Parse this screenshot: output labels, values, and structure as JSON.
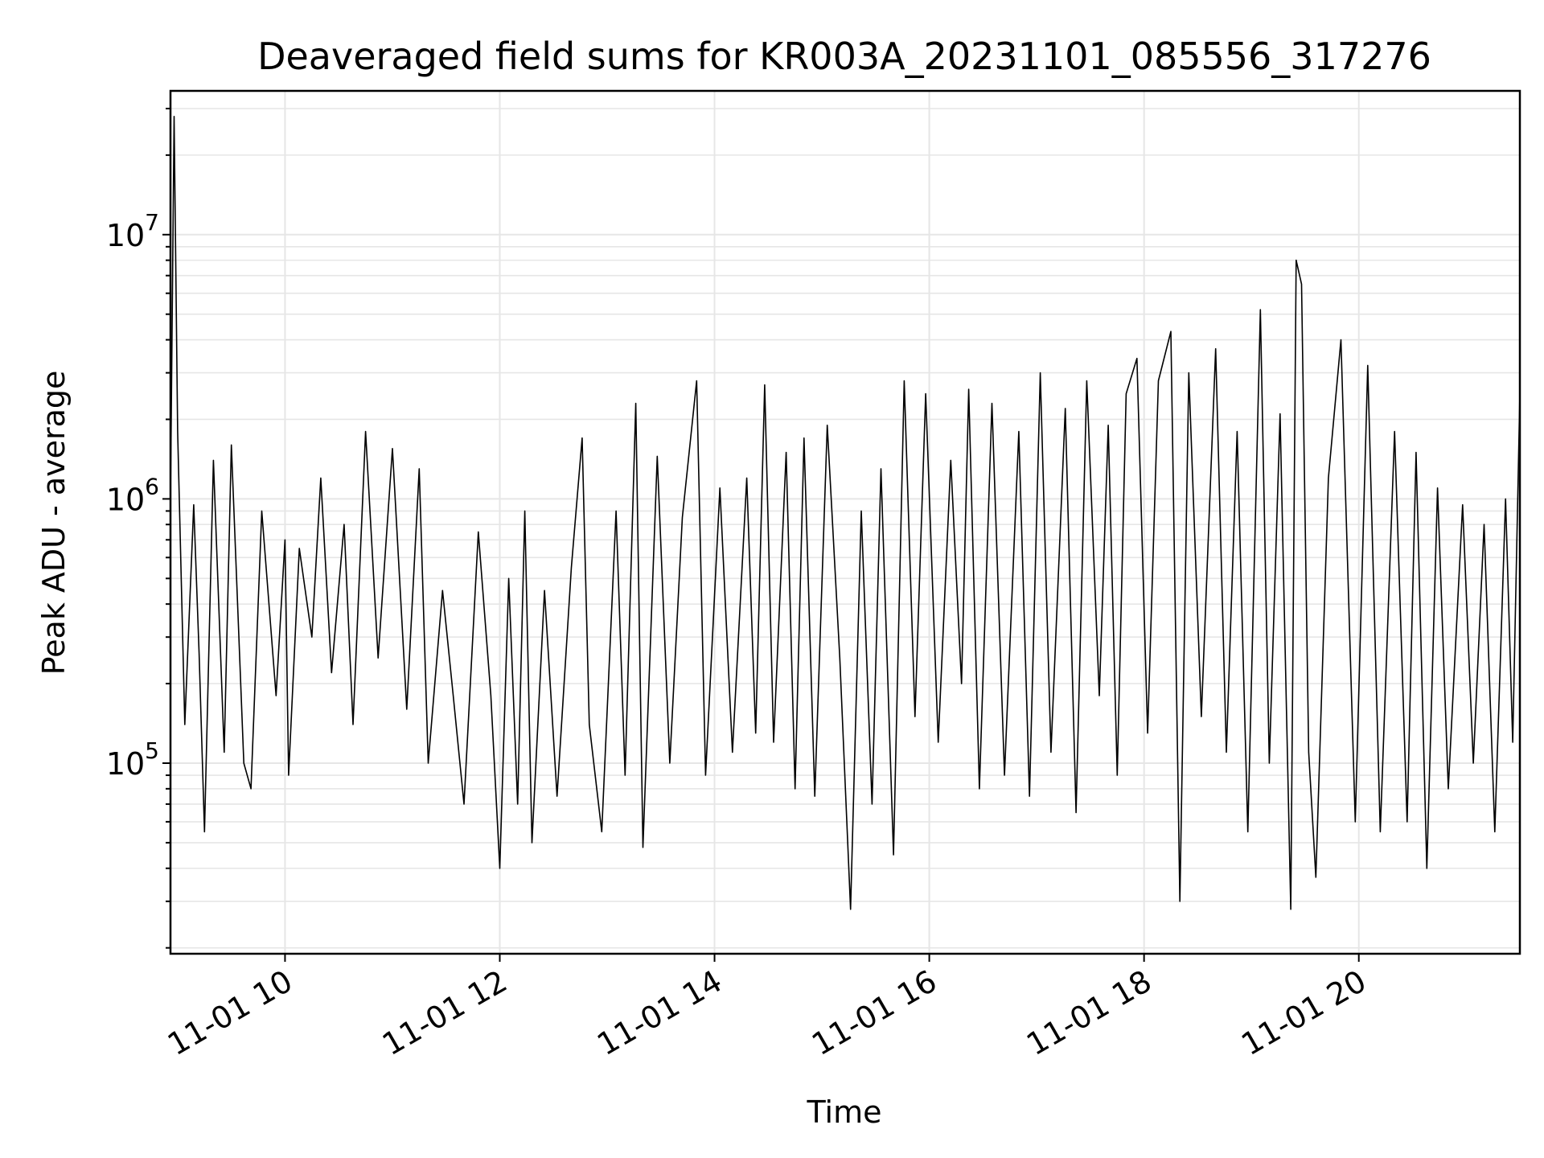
{
  "chart_data": {
    "type": "line",
    "title": "Deaveraged field sums for KR003A_20231101_085556_317276",
    "xlabel": "Time",
    "ylabel": "Peak ADU - average",
    "x_tick_labels": [
      "11-01 10",
      "11-01 12",
      "11-01 14",
      "11-01 16",
      "11-01 18",
      "11-01 20"
    ],
    "x_tick_hours": [
      10,
      12,
      14,
      16,
      18,
      20
    ],
    "y_scale": "log",
    "y_tick_labels": [
      {
        "base": "10",
        "exp": "5"
      },
      {
        "base": "10",
        "exp": "6"
      },
      {
        "base": "10",
        "exp": "7"
      }
    ],
    "y_tick_values": [
      100000,
      1000000,
      10000000
    ],
    "xlim": [
      "2023-11-01 08:56",
      "2023-11-01 21:30"
    ],
    "ylim": [
      19000,
      35000000
    ],
    "grid": true,
    "line_color": "#000000",
    "series": [
      {
        "points": [
          [
            "2023-11-01 08:56",
            1000000
          ],
          [
            "2023-11-01 08:58",
            28000000
          ],
          [
            "2023-11-01 09:00",
            1800000
          ],
          [
            "2023-11-01 09:04",
            140000
          ],
          [
            "2023-11-01 09:09",
            950000
          ],
          [
            "2023-11-01 09:12",
            260000
          ],
          [
            "2023-11-01 09:15",
            55000
          ],
          [
            "2023-11-01 09:20",
            1400000
          ],
          [
            "2023-11-01 09:26",
            110000
          ],
          [
            "2023-11-01 09:30",
            1600000
          ],
          [
            "2023-11-01 09:37",
            100000
          ],
          [
            "2023-11-01 09:41",
            80000
          ],
          [
            "2023-11-01 09:47",
            900000
          ],
          [
            "2023-11-01 09:55",
            180000
          ],
          [
            "2023-11-01 10:00",
            700000
          ],
          [
            "2023-11-01 10:02",
            90000
          ],
          [
            "2023-11-01 10:08",
            650000
          ],
          [
            "2023-11-01 10:15",
            300000
          ],
          [
            "2023-11-01 10:20",
            1200000
          ],
          [
            "2023-11-01 10:26",
            220000
          ],
          [
            "2023-11-01 10:33",
            800000
          ],
          [
            "2023-11-01 10:38",
            140000
          ],
          [
            "2023-11-01 10:45",
            1800000
          ],
          [
            "2023-11-01 10:52",
            250000
          ],
          [
            "2023-11-01 11:00",
            1550000
          ],
          [
            "2023-11-01 11:08",
            160000
          ],
          [
            "2023-11-01 11:15",
            1300000
          ],
          [
            "2023-11-01 11:20",
            100000
          ],
          [
            "2023-11-01 11:28",
            450000
          ],
          [
            "2023-11-01 11:34",
            180000
          ],
          [
            "2023-11-01 11:40",
            70000
          ],
          [
            "2023-11-01 11:48",
            750000
          ],
          [
            "2023-11-01 11:55",
            180000
          ],
          [
            "2023-11-01 12:00",
            40000
          ],
          [
            "2023-11-01 12:05",
            500000
          ],
          [
            "2023-11-01 12:10",
            70000
          ],
          [
            "2023-11-01 12:14",
            900000
          ],
          [
            "2023-11-01 12:18",
            50000
          ],
          [
            "2023-11-01 12:25",
            450000
          ],
          [
            "2023-11-01 12:32",
            75000
          ],
          [
            "2023-11-01 12:40",
            550000
          ],
          [
            "2023-11-01 12:46",
            1700000
          ],
          [
            "2023-11-01 12:50",
            140000
          ],
          [
            "2023-11-01 12:57",
            55000
          ],
          [
            "2023-11-01 13:05",
            900000
          ],
          [
            "2023-11-01 13:10",
            90000
          ],
          [
            "2023-11-01 13:16",
            2300000
          ],
          [
            "2023-11-01 13:20",
            48000
          ],
          [
            "2023-11-01 13:28",
            1450000
          ],
          [
            "2023-11-01 13:35",
            100000
          ],
          [
            "2023-11-01 13:42",
            850000
          ],
          [
            "2023-11-01 13:50",
            2800000
          ],
          [
            "2023-11-01 13:55",
            90000
          ],
          [
            "2023-11-01 14:03",
            1100000
          ],
          [
            "2023-11-01 14:10",
            110000
          ],
          [
            "2023-11-01 14:18",
            1200000
          ],
          [
            "2023-11-01 14:23",
            130000
          ],
          [
            "2023-11-01 14:28",
            2700000
          ],
          [
            "2023-11-01 14:33",
            120000
          ],
          [
            "2023-11-01 14:40",
            1500000
          ],
          [
            "2023-11-01 14:45",
            80000
          ],
          [
            "2023-11-01 14:50",
            1700000
          ],
          [
            "2023-11-01 14:56",
            75000
          ],
          [
            "2023-11-01 15:03",
            1900000
          ],
          [
            "2023-11-01 15:10",
            250000
          ],
          [
            "2023-11-01 15:16",
            28000
          ],
          [
            "2023-11-01 15:22",
            900000
          ],
          [
            "2023-11-01 15:28",
            70000
          ],
          [
            "2023-11-01 15:33",
            1300000
          ],
          [
            "2023-11-01 15:40",
            45000
          ],
          [
            "2023-11-01 15:46",
            2800000
          ],
          [
            "2023-11-01 15:52",
            150000
          ],
          [
            "2023-11-01 15:58",
            2500000
          ],
          [
            "2023-11-01 16:05",
            120000
          ],
          [
            "2023-11-01 16:12",
            1400000
          ],
          [
            "2023-11-01 16:18",
            200000
          ],
          [
            "2023-11-01 16:22",
            2600000
          ],
          [
            "2023-11-01 16:28",
            80000
          ],
          [
            "2023-11-01 16:35",
            2300000
          ],
          [
            "2023-11-01 16:42",
            90000
          ],
          [
            "2023-11-01 16:50",
            1800000
          ],
          [
            "2023-11-01 16:56",
            75000
          ],
          [
            "2023-11-01 17:02",
            3000000
          ],
          [
            "2023-11-01 17:08",
            110000
          ],
          [
            "2023-11-01 17:16",
            2200000
          ],
          [
            "2023-11-01 17:22",
            65000
          ],
          [
            "2023-11-01 17:28",
            2800000
          ],
          [
            "2023-11-01 17:35",
            180000
          ],
          [
            "2023-11-01 17:40",
            1900000
          ],
          [
            "2023-11-01 17:45",
            90000
          ],
          [
            "2023-11-01 17:50",
            2500000
          ],
          [
            "2023-11-01 17:56",
            3400000
          ],
          [
            "2023-11-01 18:02",
            130000
          ],
          [
            "2023-11-01 18:08",
            2800000
          ],
          [
            "2023-11-01 18:15",
            4300000
          ],
          [
            "2023-11-01 18:20",
            30000
          ],
          [
            "2023-11-01 18:25",
            3000000
          ],
          [
            "2023-11-01 18:32",
            150000
          ],
          [
            "2023-11-01 18:40",
            3700000
          ],
          [
            "2023-11-01 18:46",
            110000
          ],
          [
            "2023-11-01 18:52",
            1800000
          ],
          [
            "2023-11-01 18:58",
            55000
          ],
          [
            "2023-11-01 19:05",
            5200000
          ],
          [
            "2023-11-01 19:10",
            100000
          ],
          [
            "2023-11-01 19:16",
            2100000
          ],
          [
            "2023-11-01 19:22",
            28000
          ],
          [
            "2023-11-01 19:25",
            8000000
          ],
          [
            "2023-11-01 19:28",
            6500000
          ],
          [
            "2023-11-01 19:32",
            110000
          ],
          [
            "2023-11-01 19:36",
            37000
          ],
          [
            "2023-11-01 19:43",
            1200000
          ],
          [
            "2023-11-01 19:50",
            4000000
          ],
          [
            "2023-11-01 19:58",
            60000
          ],
          [
            "2023-11-01 20:05",
            3200000
          ],
          [
            "2023-11-01 20:12",
            55000
          ],
          [
            "2023-11-01 20:20",
            1800000
          ],
          [
            "2023-11-01 20:27",
            60000
          ],
          [
            "2023-11-01 20:32",
            1500000
          ],
          [
            "2023-11-01 20:38",
            40000
          ],
          [
            "2023-11-01 20:44",
            1100000
          ],
          [
            "2023-11-01 20:50",
            80000
          ],
          [
            "2023-11-01 20:58",
            950000
          ],
          [
            "2023-11-01 21:04",
            100000
          ],
          [
            "2023-11-01 21:10",
            800000
          ],
          [
            "2023-11-01 21:16",
            55000
          ],
          [
            "2023-11-01 21:22",
            1000000
          ],
          [
            "2023-11-01 21:26",
            120000
          ],
          [
            "2023-11-01 21:30",
            2500000
          ]
        ]
      }
    ]
  }
}
